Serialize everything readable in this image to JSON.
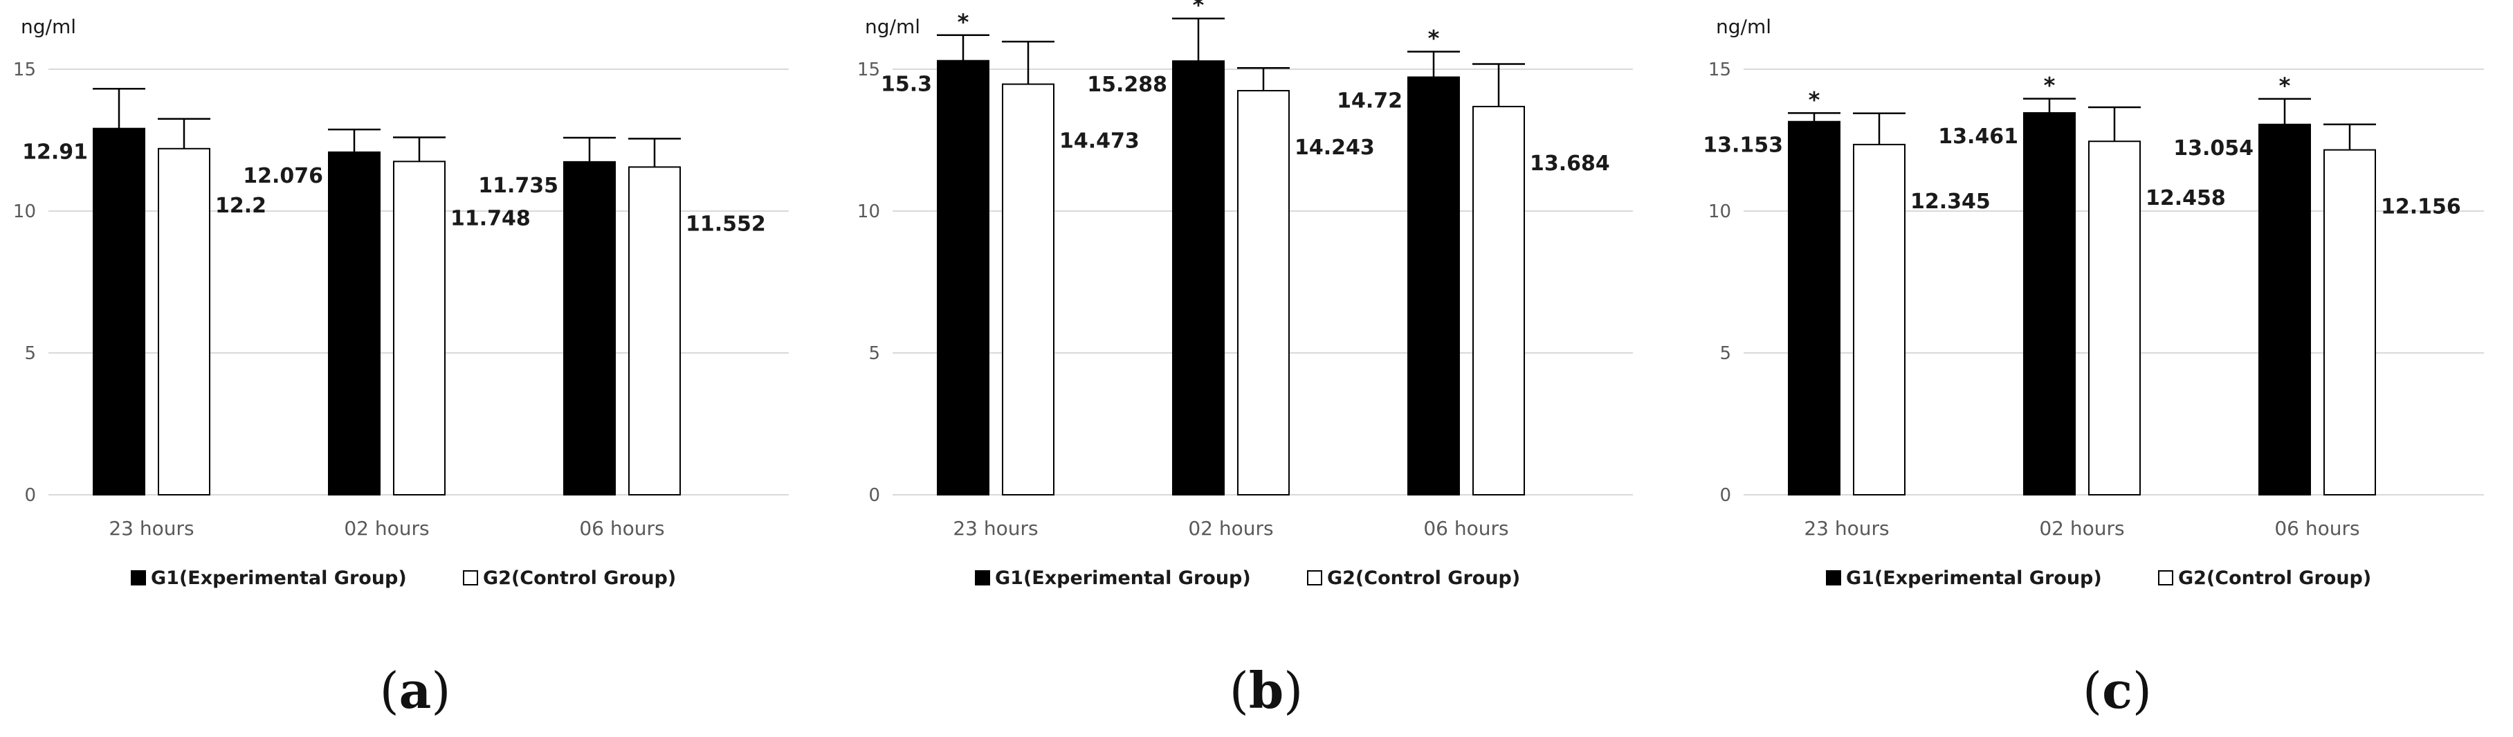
{
  "panels": [
    {
      "id": "a",
      "label": "a"
    },
    {
      "id": "b",
      "label": "b"
    },
    {
      "id": "c",
      "label": "c"
    }
  ],
  "colors": {
    "g1_fill": "#000000",
    "g2_fill": "#ffffff",
    "bar_stroke": "#000000",
    "grid": "#d9d9d9",
    "axis_text": "#595959",
    "label_text": "#1a1a1a"
  },
  "chart_data": [
    {
      "type": "bar",
      "panel": "a",
      "ylabel": "ng/ml",
      "ylim": [
        0,
        15
      ],
      "yticks": [
        0,
        5,
        10,
        15
      ],
      "categories": [
        "23 hours",
        "02 hours",
        "06 hours"
      ],
      "series": [
        {
          "name": "G1(Experimental Group)",
          "values": [
            12.91,
            12.076,
            11.735
          ],
          "errors": [
            1.4,
            0.8,
            0.85
          ],
          "labels": [
            "12.91",
            "12.076",
            "11.735"
          ]
        },
        {
          "name": "G2(Control Group)",
          "values": [
            12.2,
            11.748,
            11.552
          ],
          "errors": [
            1.05,
            0.85,
            1.0
          ],
          "labels": [
            "12.2",
            "11.748",
            "11.552"
          ]
        }
      ],
      "significance": [
        "",
        "",
        ""
      ],
      "legend": "bottom"
    },
    {
      "type": "bar",
      "panel": "b",
      "ylabel": "ng/ml",
      "ylim": [
        0,
        15
      ],
      "yticks": [
        0,
        5,
        10,
        15
      ],
      "categories": [
        "23 hours",
        "02 hours",
        "06 hours"
      ],
      "series": [
        {
          "name": "G1(Experimental Group)",
          "values": [
            15.3,
            15.288,
            14.72
          ],
          "errors": [
            0.9,
            1.5,
            0.9
          ],
          "labels": [
            "15.3",
            "15.288",
            "14.72"
          ]
        },
        {
          "name": "G2(Control Group)",
          "values": [
            14.473,
            14.243,
            13.684
          ],
          "errors": [
            1.5,
            0.8,
            1.5
          ],
          "labels": [
            "14.473",
            "14.243",
            "13.684"
          ]
        }
      ],
      "significance": [
        "*",
        "*",
        "*"
      ],
      "legend": "bottom"
    },
    {
      "type": "bar",
      "panel": "c",
      "ylabel": "ng/ml",
      "ylim": [
        0,
        15
      ],
      "yticks": [
        0,
        5,
        10,
        15
      ],
      "categories": [
        "23 hours",
        "02 hours",
        "06 hours"
      ],
      "series": [
        {
          "name": "G1(Experimental Group)",
          "values": [
            13.153,
            13.461,
            13.054
          ],
          "errors": [
            0.3,
            0.5,
            0.9
          ],
          "labels": [
            "13.153",
            "13.461",
            "13.054"
          ]
        },
        {
          "name": "G2(Control Group)",
          "values": [
            12.345,
            12.458,
            12.156
          ],
          "errors": [
            1.1,
            1.2,
            0.9
          ],
          "labels": [
            "12.345",
            "12.458",
            "12.156"
          ]
        }
      ],
      "significance": [
        "*",
        "*",
        "*"
      ],
      "legend": "bottom"
    }
  ]
}
